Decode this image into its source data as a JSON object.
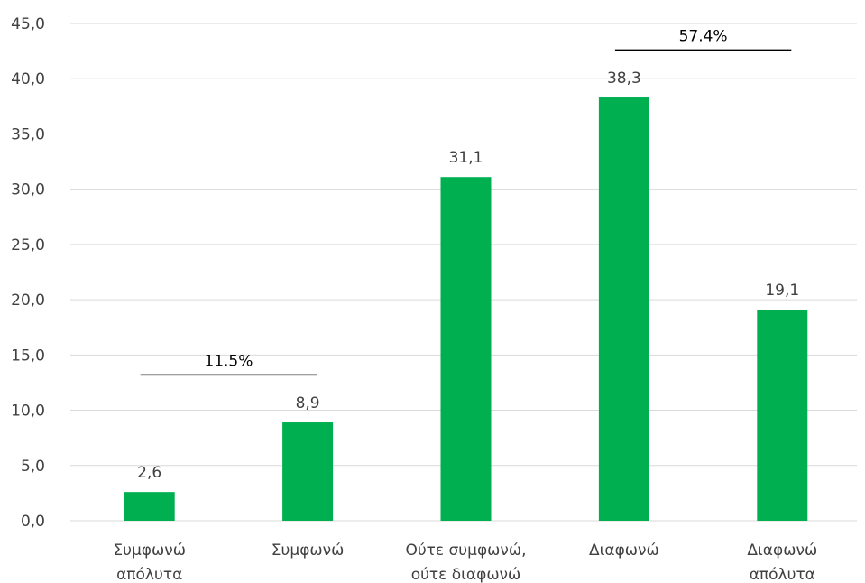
{
  "chart_data": {
    "type": "bar",
    "categories": [
      [
        "Συμφωνώ",
        "απόλυτα"
      ],
      [
        "Συμφωνώ"
      ],
      [
        "Ούτε συμφωνώ,",
        "ούτε διαφωνώ"
      ],
      [
        "Διαφωνώ"
      ],
      [
        "Διαφωνώ",
        "απόλυτα"
      ]
    ],
    "values": [
      2.6,
      8.9,
      31.1,
      38.3,
      19.1
    ],
    "value_labels": [
      "2,6",
      "8,9",
      "31,1",
      "38,3",
      "19,1"
    ],
    "ylim": [
      0,
      45
    ],
    "yticks": [
      0,
      5,
      10,
      15,
      20,
      25,
      30,
      35,
      40,
      45
    ],
    "ytick_labels": [
      "0,0",
      "5,0",
      "10,0",
      "15,0",
      "20,0",
      "25,0",
      "30,0",
      "35,0",
      "40,0",
      "45,0"
    ],
    "grid": true,
    "bar_color": "#00b050",
    "annotations": [
      {
        "text": "11.5%",
        "from_category": 0,
        "to_category": 1,
        "y": 13.2
      },
      {
        "text": "57.4%",
        "from_category": 3,
        "to_category": 4,
        "y": 42.6
      }
    ]
  }
}
